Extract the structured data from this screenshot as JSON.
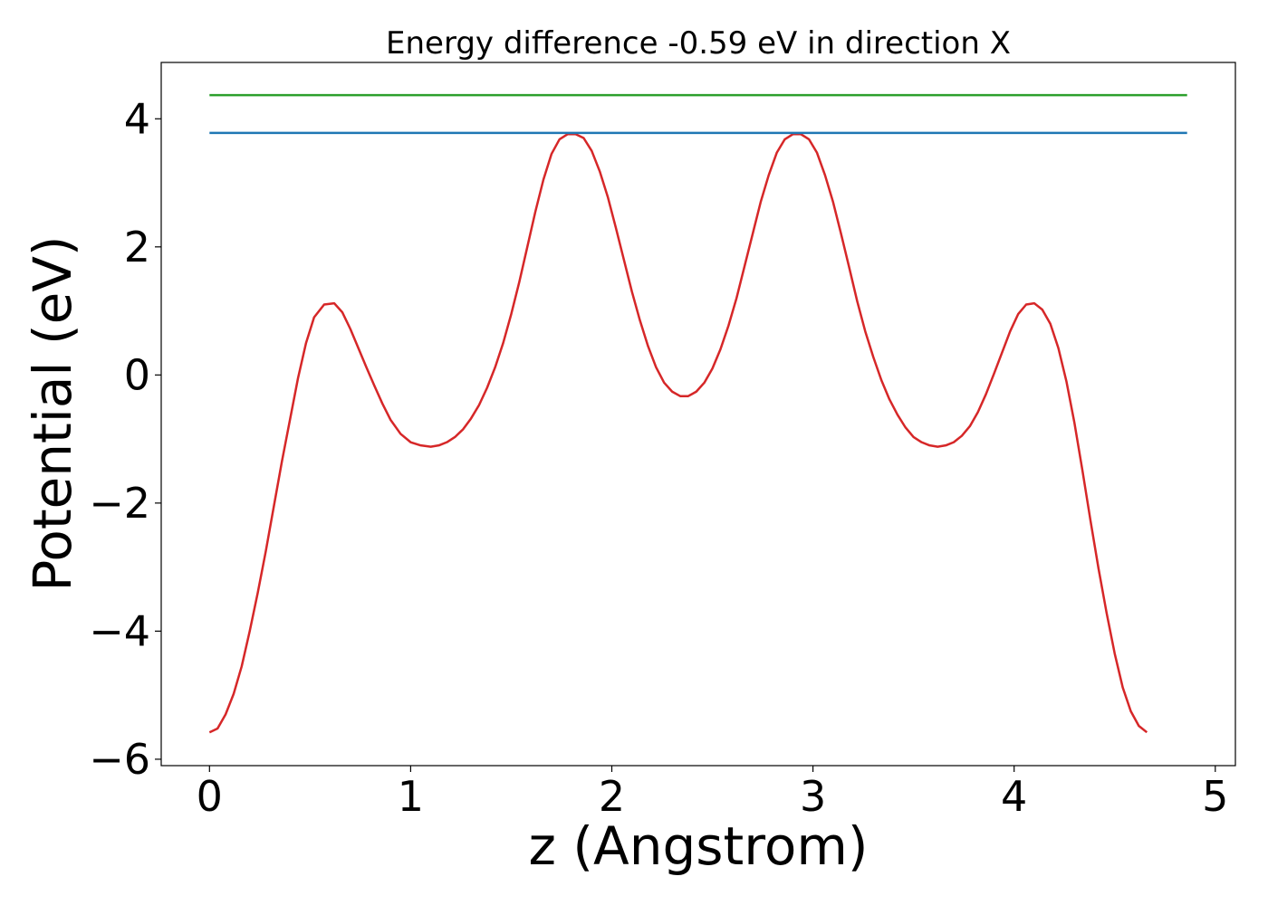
{
  "chart_data": {
    "type": "line",
    "title": "Energy difference -0.59 eV in direction X",
    "xlabel": "z (Angstrom)",
    "ylabel": "Potential (eV)",
    "xlim": [
      -0.24,
      5.1
    ],
    "ylim": [
      -6.1,
      4.88
    ],
    "x_ticks": [
      0,
      1,
      2,
      3,
      4,
      5
    ],
    "x_tick_labels": [
      "0",
      "1",
      "2",
      "3",
      "4",
      "5"
    ],
    "y_ticks": [
      -6,
      -4,
      -2,
      0,
      2,
      4
    ],
    "y_tick_labels": [
      "−6",
      "−4",
      "−2",
      "0",
      "2",
      "4"
    ],
    "grid": false,
    "legend": "none",
    "series": [
      {
        "color": "#d62728",
        "points": [
          [
            0.0,
            -5.58
          ],
          [
            0.04,
            -5.52
          ],
          [
            0.08,
            -5.3
          ],
          [
            0.12,
            -4.98
          ],
          [
            0.16,
            -4.55
          ],
          [
            0.2,
            -4.0
          ],
          [
            0.24,
            -3.4
          ],
          [
            0.28,
            -2.75
          ],
          [
            0.32,
            -2.05
          ],
          [
            0.36,
            -1.35
          ],
          [
            0.4,
            -0.7
          ],
          [
            0.44,
            -0.05
          ],
          [
            0.48,
            0.5
          ],
          [
            0.52,
            0.9
          ],
          [
            0.57,
            1.1
          ],
          [
            0.62,
            1.12
          ],
          [
            0.66,
            0.98
          ],
          [
            0.7,
            0.72
          ],
          [
            0.74,
            0.42
          ],
          [
            0.78,
            0.12
          ],
          [
            0.82,
            -0.17
          ],
          [
            0.86,
            -0.45
          ],
          [
            0.9,
            -0.7
          ],
          [
            0.95,
            -0.92
          ],
          [
            1.0,
            -1.05
          ],
          [
            1.05,
            -1.1
          ],
          [
            1.1,
            -1.12
          ],
          [
            1.14,
            -1.1
          ],
          [
            1.18,
            -1.05
          ],
          [
            1.22,
            -0.97
          ],
          [
            1.26,
            -0.85
          ],
          [
            1.3,
            -0.68
          ],
          [
            1.34,
            -0.47
          ],
          [
            1.38,
            -0.2
          ],
          [
            1.42,
            0.12
          ],
          [
            1.46,
            0.5
          ],
          [
            1.5,
            0.95
          ],
          [
            1.54,
            1.45
          ],
          [
            1.58,
            2.0
          ],
          [
            1.62,
            2.55
          ],
          [
            1.66,
            3.05
          ],
          [
            1.7,
            3.45
          ],
          [
            1.74,
            3.68
          ],
          [
            1.78,
            3.76
          ],
          [
            1.82,
            3.76
          ],
          [
            1.86,
            3.7
          ],
          [
            1.9,
            3.5
          ],
          [
            1.94,
            3.18
          ],
          [
            1.98,
            2.78
          ],
          [
            2.02,
            2.3
          ],
          [
            2.06,
            1.8
          ],
          [
            2.1,
            1.3
          ],
          [
            2.14,
            0.85
          ],
          [
            2.18,
            0.45
          ],
          [
            2.22,
            0.12
          ],
          [
            2.26,
            -0.12
          ],
          [
            2.3,
            -0.26
          ],
          [
            2.34,
            -0.33
          ],
          [
            2.38,
            -0.33
          ],
          [
            2.42,
            -0.26
          ],
          [
            2.46,
            -0.12
          ],
          [
            2.5,
            0.1
          ],
          [
            2.54,
            0.4
          ],
          [
            2.58,
            0.77
          ],
          [
            2.62,
            1.2
          ],
          [
            2.66,
            1.7
          ],
          [
            2.7,
            2.2
          ],
          [
            2.74,
            2.7
          ],
          [
            2.78,
            3.12
          ],
          [
            2.82,
            3.47
          ],
          [
            2.86,
            3.68
          ],
          [
            2.9,
            3.76
          ],
          [
            2.94,
            3.76
          ],
          [
            2.98,
            3.68
          ],
          [
            3.02,
            3.47
          ],
          [
            3.06,
            3.12
          ],
          [
            3.1,
            2.7
          ],
          [
            3.14,
            2.2
          ],
          [
            3.18,
            1.68
          ],
          [
            3.22,
            1.15
          ],
          [
            3.26,
            0.68
          ],
          [
            3.3,
            0.28
          ],
          [
            3.34,
            -0.08
          ],
          [
            3.38,
            -0.38
          ],
          [
            3.42,
            -0.62
          ],
          [
            3.46,
            -0.82
          ],
          [
            3.5,
            -0.97
          ],
          [
            3.54,
            -1.05
          ],
          [
            3.58,
            -1.1
          ],
          [
            3.62,
            -1.12
          ],
          [
            3.66,
            -1.1
          ],
          [
            3.7,
            -1.05
          ],
          [
            3.74,
            -0.95
          ],
          [
            3.78,
            -0.8
          ],
          [
            3.82,
            -0.58
          ],
          [
            3.86,
            -0.3
          ],
          [
            3.9,
            0.02
          ],
          [
            3.94,
            0.35
          ],
          [
            3.98,
            0.68
          ],
          [
            4.02,
            0.95
          ],
          [
            4.06,
            1.1
          ],
          [
            4.1,
            1.12
          ],
          [
            4.14,
            1.02
          ],
          [
            4.18,
            0.8
          ],
          [
            4.22,
            0.42
          ],
          [
            4.26,
            -0.1
          ],
          [
            4.3,
            -0.75
          ],
          [
            4.34,
            -1.5
          ],
          [
            4.38,
            -2.28
          ],
          [
            4.42,
            -3.03
          ],
          [
            4.46,
            -3.72
          ],
          [
            4.5,
            -4.35
          ],
          [
            4.54,
            -4.88
          ],
          [
            4.58,
            -5.25
          ],
          [
            4.62,
            -5.48
          ],
          [
            4.66,
            -5.58
          ]
        ]
      },
      {
        "color": "#1f77b4",
        "points": [
          [
            0.0,
            3.78
          ],
          [
            4.86,
            3.78
          ]
        ]
      },
      {
        "color": "#2ca02c",
        "points": [
          [
            0.0,
            4.37
          ],
          [
            4.86,
            4.37
          ]
        ]
      }
    ]
  }
}
